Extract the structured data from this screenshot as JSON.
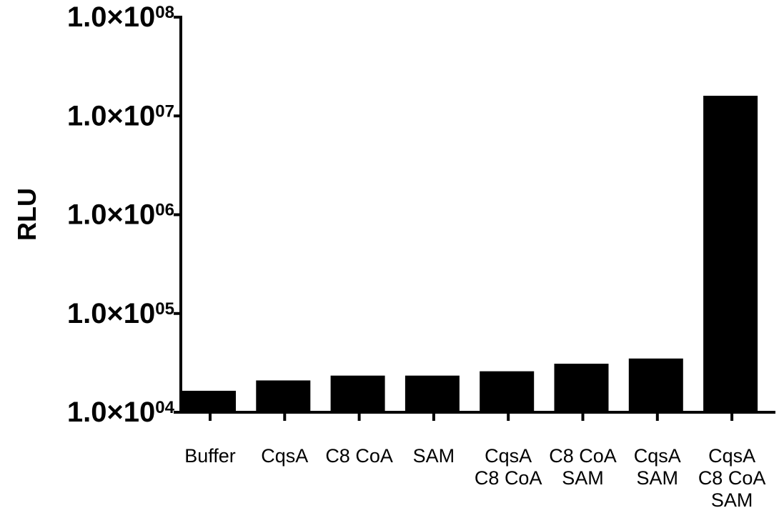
{
  "chart_data": {
    "type": "bar",
    "title": "",
    "xlabel": "",
    "ylabel": "RLU",
    "yscale": "log",
    "ylim": [
      10000,
      100000000
    ],
    "grid": false,
    "legend": "none",
    "bar_color": "#000000",
    "yticks": [
      {
        "value": 10000,
        "mantissa": "1.0×10",
        "exponent": "04"
      },
      {
        "value": 100000,
        "mantissa": "1.0×10",
        "exponent": "05"
      },
      {
        "value": 1000000,
        "mantissa": "1.0×10",
        "exponent": "06"
      },
      {
        "value": 10000000,
        "mantissa": "1.0×10",
        "exponent": "07"
      },
      {
        "value": 100000000,
        "mantissa": "1.0×10",
        "exponent": "08"
      }
    ],
    "categories": [
      [
        "Buffer"
      ],
      [
        "CqsA"
      ],
      [
        "C8 CoA"
      ],
      [
        "SAM"
      ],
      [
        "CqsA",
        "C8 CoA"
      ],
      [
        "C8 CoA",
        "SAM"
      ],
      [
        "CqsA",
        "SAM"
      ],
      [
        "CqsA",
        "C8 CoA",
        "SAM"
      ]
    ],
    "values": [
      16500,
      21000,
      23500,
      23500,
      26000,
      31000,
      35000,
      16000000
    ]
  }
}
